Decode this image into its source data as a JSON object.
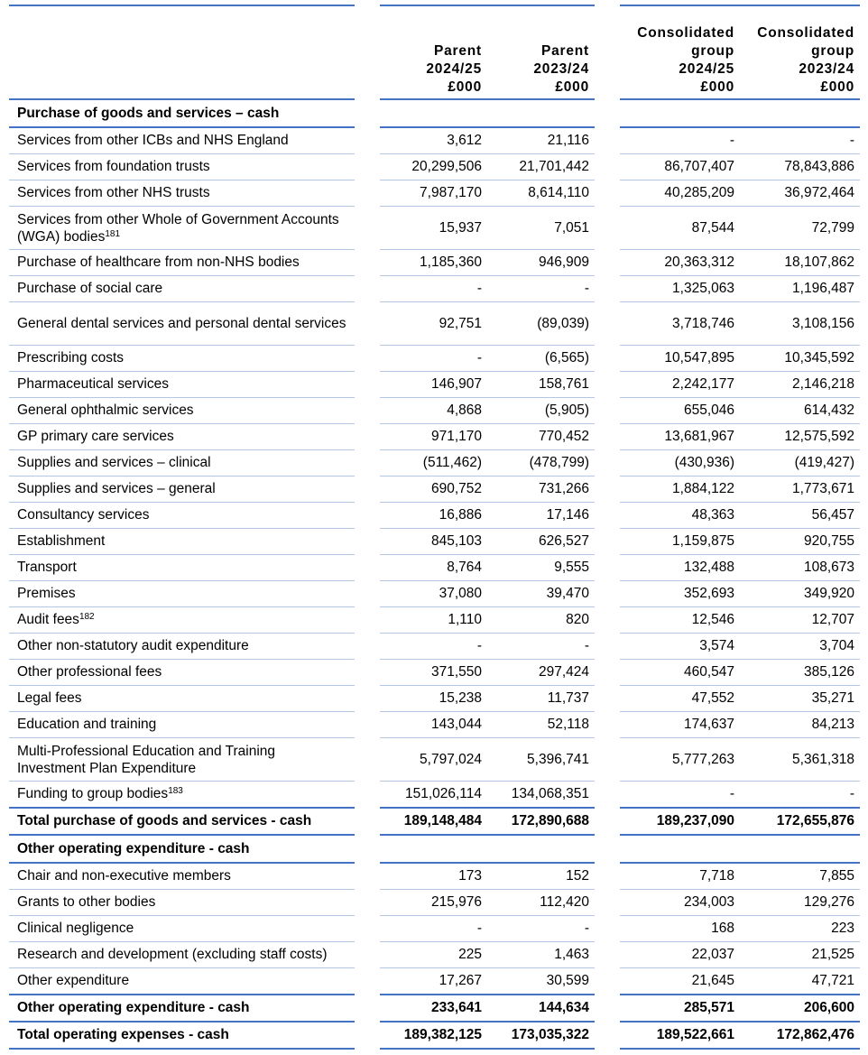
{
  "header": {
    "columns": [
      {
        "line1": "",
        "line2": "Parent",
        "line3": "2024/25",
        "line4": "£000"
      },
      {
        "line1": "",
        "line2": "Parent",
        "line3": "2023/24",
        "line4": "£000"
      },
      {
        "line1": "Consolidated",
        "line2": "group",
        "line3": "2024/25",
        "line4": "£000"
      },
      {
        "line1": "Consolidated",
        "line2": "group",
        "line3": "2023/24",
        "line4": "£000"
      }
    ]
  },
  "colors": {
    "rule_thick": "#4472C4",
    "rule_thin": "#B4C6E7"
  },
  "rows": [
    {
      "type": "section",
      "label": "Purchase of goods and services – cash",
      "sup": "",
      "values": [
        "",
        "",
        "",
        ""
      ]
    },
    {
      "type": "normal",
      "label": "Services from other ICBs and NHS England",
      "sup": "",
      "values": [
        "3,612",
        "21,116",
        "-",
        "-"
      ]
    },
    {
      "type": "normal",
      "label": "Services from foundation trusts",
      "sup": "",
      "values": [
        "20,299,506",
        "21,701,442",
        "86,707,407",
        "78,843,886"
      ]
    },
    {
      "type": "normal",
      "label": "Services from other NHS trusts",
      "sup": "",
      "values": [
        "7,987,170",
        "8,614,110",
        "40,285,209",
        "36,972,464"
      ]
    },
    {
      "type": "normal two",
      "label": "Services from other Whole of Government Accounts (WGA) bodies",
      "sup": "181",
      "values": [
        "15,937",
        "7,051",
        "87,544",
        "72,799"
      ]
    },
    {
      "type": "normal",
      "label": "Purchase of healthcare from non-NHS bodies",
      "sup": "",
      "values": [
        "1,185,360",
        "946,909",
        "20,363,312",
        "18,107,862"
      ]
    },
    {
      "type": "normal",
      "label": "Purchase of social care",
      "sup": "",
      "values": [
        "-",
        "-",
        "1,325,063",
        "1,196,487"
      ]
    },
    {
      "type": "normal two",
      "label": "General dental services and personal dental services",
      "sup": "",
      "values": [
        "92,751",
        "(89,039)",
        "3,718,746",
        "3,108,156"
      ]
    },
    {
      "type": "normal",
      "label": "Prescribing costs",
      "sup": "",
      "values": [
        "-",
        "(6,565)",
        "10,547,895",
        "10,345,592"
      ]
    },
    {
      "type": "normal",
      "label": "Pharmaceutical services",
      "sup": "",
      "values": [
        "146,907",
        "158,761",
        "2,242,177",
        "2,146,218"
      ]
    },
    {
      "type": "normal",
      "label": "General ophthalmic services",
      "sup": "",
      "values": [
        "4,868",
        "(5,905)",
        "655,046",
        "614,432"
      ]
    },
    {
      "type": "normal",
      "label": "GP primary care services",
      "sup": "",
      "values": [
        "971,170",
        "770,452",
        "13,681,967",
        "12,575,592"
      ]
    },
    {
      "type": "normal",
      "label": "Supplies and services – clinical",
      "sup": "",
      "values": [
        "(511,462)",
        "(478,799)",
        "(430,936)",
        "(419,427)"
      ]
    },
    {
      "type": "normal",
      "label": "Supplies and services – general",
      "sup": "",
      "values": [
        "690,752",
        "731,266",
        "1,884,122",
        "1,773,671"
      ]
    },
    {
      "type": "normal",
      "label": "Consultancy services",
      "sup": "",
      "values": [
        "16,886",
        "17,146",
        "48,363",
        "56,457"
      ]
    },
    {
      "type": "normal",
      "label": "Establishment",
      "sup": "",
      "values": [
        "845,103",
        "626,527",
        "1,159,875",
        "920,755"
      ]
    },
    {
      "type": "normal",
      "label": "Transport",
      "sup": "",
      "values": [
        "8,764",
        "9,555",
        "132,488",
        "108,673"
      ]
    },
    {
      "type": "normal",
      "label": "Premises",
      "sup": "",
      "values": [
        "37,080",
        "39,470",
        "352,693",
        "349,920"
      ]
    },
    {
      "type": "normal",
      "label": "Audit fees",
      "sup": "182",
      "values": [
        "1,110",
        "820",
        "12,546",
        "12,707"
      ]
    },
    {
      "type": "normal",
      "label": "Other non-statutory audit expenditure",
      "sup": "",
      "values": [
        "-",
        "-",
        "3,574",
        "3,704"
      ]
    },
    {
      "type": "normal",
      "label": "Other professional fees",
      "sup": "",
      "values": [
        "371,550",
        "297,424",
        "460,547",
        "385,126"
      ]
    },
    {
      "type": "normal",
      "label": "Legal fees",
      "sup": "",
      "values": [
        "15,238",
        "11,737",
        "47,552",
        "35,271"
      ]
    },
    {
      "type": "normal",
      "label": "Education and training",
      "sup": "",
      "values": [
        "143,044",
        "52,118",
        "174,637",
        "84,213"
      ]
    },
    {
      "type": "normal two",
      "label": "Multi-Professional Education and Training Investment Plan Expenditure",
      "sup": "",
      "values": [
        "5,797,024",
        "5,396,741",
        "5,777,263",
        "5,361,318"
      ]
    },
    {
      "type": "normal",
      "label": "Funding to group bodies",
      "sup": "183",
      "values": [
        "151,026,114",
        "134,068,351",
        "-",
        "-"
      ]
    },
    {
      "type": "total",
      "label": "Total purchase of goods and services - cash",
      "sup": "",
      "values": [
        "189,148,484",
        "172,890,688",
        "189,237,090",
        "172,655,876"
      ]
    },
    {
      "type": "section",
      "label": "Other operating expenditure - cash",
      "sup": "",
      "values": [
        "",
        "",
        "",
        ""
      ]
    },
    {
      "type": "normal",
      "label": "Chair and non-executive members",
      "sup": "",
      "values": [
        "173",
        "152",
        "7,718",
        "7,855"
      ]
    },
    {
      "type": "normal",
      "label": "Grants to other bodies",
      "sup": "",
      "values": [
        "215,976",
        "112,420",
        "234,003",
        "129,276"
      ]
    },
    {
      "type": "normal",
      "label": "Clinical negligence",
      "sup": "",
      "values": [
        "-",
        "-",
        "168",
        "223"
      ]
    },
    {
      "type": "normal",
      "label": "Research and development (excluding staff costs)",
      "sup": "",
      "values": [
        "225",
        "1,463",
        "22,037",
        "21,525"
      ]
    },
    {
      "type": "normal",
      "label": "Other expenditure",
      "sup": "",
      "values": [
        "17,267",
        "30,599",
        "21,645",
        "47,721"
      ]
    },
    {
      "type": "total",
      "label": "Other operating expenditure - cash",
      "sup": "",
      "values": [
        "233,641",
        "144,634",
        "285,571",
        "206,600"
      ]
    },
    {
      "type": "total",
      "label": "Total operating expenses - cash",
      "sup": "",
      "values": [
        "189,382,125",
        "173,035,322",
        "189,522,661",
        "172,862,476"
      ]
    }
  ]
}
